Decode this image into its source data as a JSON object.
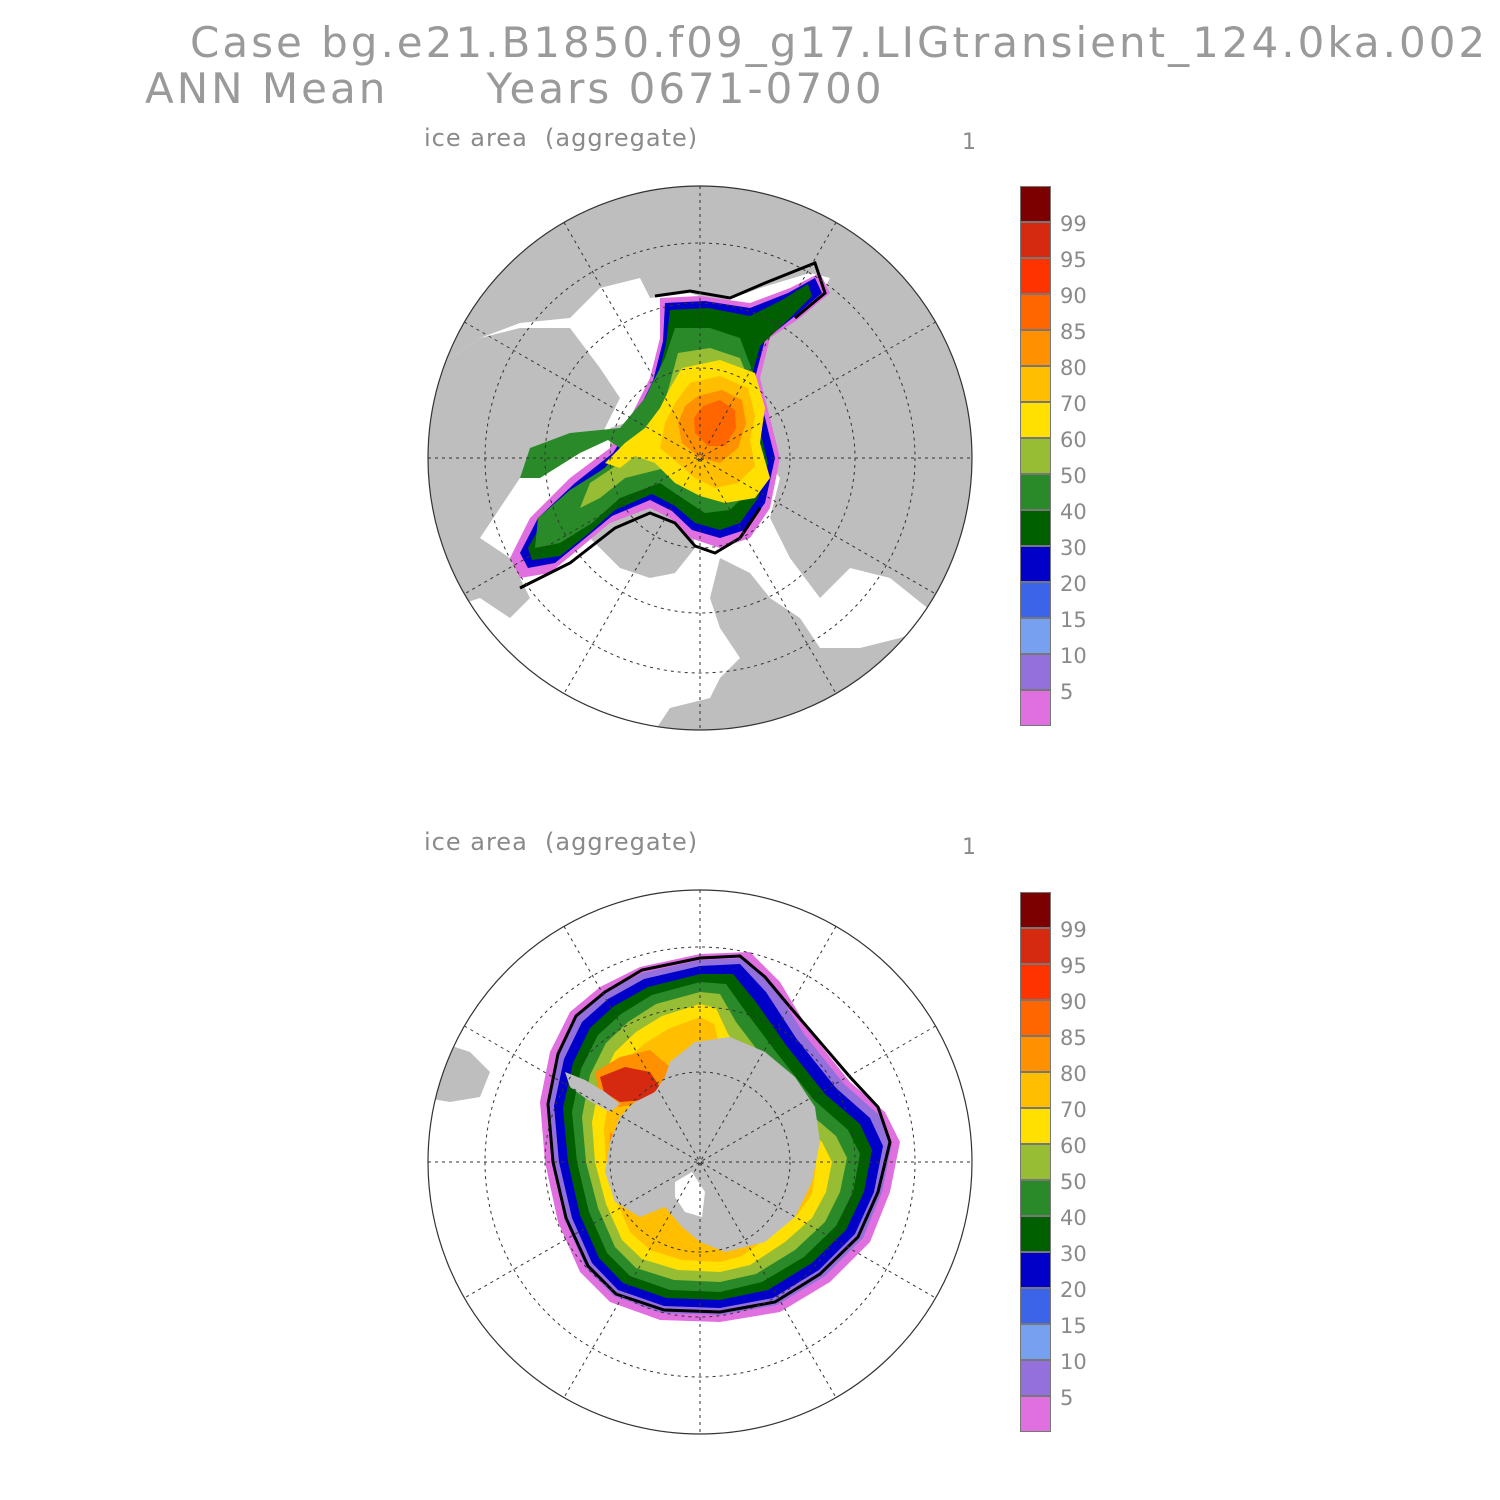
{
  "title": {
    "case": "Case bg.e21.B1850.f09_g17.LIGtransient_124.0ka.002",
    "period": "ANN Mean      Years 0671-0700"
  },
  "colors": {
    "land": "#bebebe",
    "ocean": "#ffffff",
    "outline": "#000000"
  },
  "colorbar": {
    "segments": [
      "#7d0000",
      "#d52a10",
      "#ff3300",
      "#ff6600",
      "#ff9000",
      "#ffbf00",
      "#ffe000",
      "#97bd34",
      "#2a8a2a",
      "#006000",
      "#0000c8",
      "#3c64e8",
      "#78a0f0",
      "#9370db",
      "#e070e0"
    ],
    "labels": [
      "99",
      "95",
      "90",
      "85",
      "80",
      "70",
      "60",
      "50",
      "40",
      "30",
      "20",
      "15",
      "10",
      "5"
    ]
  },
  "panels": [
    {
      "label": "ice area  (aggregate)",
      "index": "1",
      "hemisphere": "north"
    },
    {
      "label": "ice area  (aggregate)",
      "index": "1",
      "hemisphere": "south"
    }
  ]
}
